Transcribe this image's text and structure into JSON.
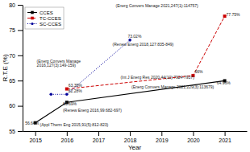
{
  "chart_data": {
    "type": "line",
    "xlabel": "Year",
    "ylabel": "R.T.E (%)",
    "xlim": [
      2014.6,
      2021.7
    ],
    "ylim": [
      55,
      80
    ],
    "xticks": [
      2015,
      2016,
      2017,
      2018,
      2019,
      2020,
      2021
    ],
    "yticks": [
      55,
      60,
      65,
      70,
      75,
      80
    ],
    "legend": "upper left",
    "series": [
      {
        "name": "CCES",
        "color": "#000000",
        "marker": "square",
        "line_style": "solid",
        "x": [
          2015,
          2016,
          2021
        ],
        "values": [
          56.64,
          60.69,
          64.96
        ]
      },
      {
        "name": "TC-CCES",
        "color": "#cc0000",
        "marker": "square",
        "line_style": "dashed",
        "x": [
          2016,
          2020,
          2021
        ],
        "values": [
          63.35,
          66.0,
          77.75
        ]
      },
      {
        "name": "SC-CCES",
        "color": "#000099",
        "marker": "circle",
        "line_style": "dotted",
        "x": [
          2015.5,
          2016,
          2018
        ],
        "values": [
          62.28,
          62.28,
          73.02
        ]
      }
    ],
    "annotations": [
      {
        "text": "(Energ Convers Manage 2021,247(1):114757)",
        "x": 2017.55,
        "y": 79.3
      },
      {
        "text": "77.75%",
        "x": 2021.05,
        "y": 77.5
      },
      {
        "text": "73.02%",
        "x": 2017.93,
        "y": 73.3
      },
      {
        "text": "(Renew Energ 2018,127:835-849)",
        "x": 2017.45,
        "y": 71.7
      },
      {
        "text": "(Energ Convers Manage\n2016,127(3):149-159)",
        "x": 2015.05,
        "y": 67.5
      },
      {
        "text": "(Int J Energ Res 2020,44(10):7924-7937)",
        "x": 2017.7,
        "y": 65.2
      },
      {
        "text": "66%",
        "x": 2020.05,
        "y": 66.2
      },
      {
        "text": "(Energ Convers Manage 2021,229(3):113679)",
        "x": 2018.05,
        "y": 63.3
      },
      {
        "text": "64.96%",
        "x": 2020.75,
        "y": 64.05
      },
      {
        "text": "62.28%",
        "x": 2016.05,
        "y": 62.4
      },
      {
        "text": "63.35%",
        "x": 2016.05,
        "y": 63.55
      },
      {
        "text": "60.69%",
        "x": 2015.88,
        "y": 59.85
      },
      {
        "text": "(Renew Energ 2016,99:682-697)",
        "x": 2015.88,
        "y": 58.7
      },
      {
        "text": "56.64%",
        "x": 2014.68,
        "y": 56.05
      },
      {
        "text": "(Appl Therm Eng 2015,91(5):812-823)",
        "x": 2015.05,
        "y": 55.8
      }
    ]
  }
}
